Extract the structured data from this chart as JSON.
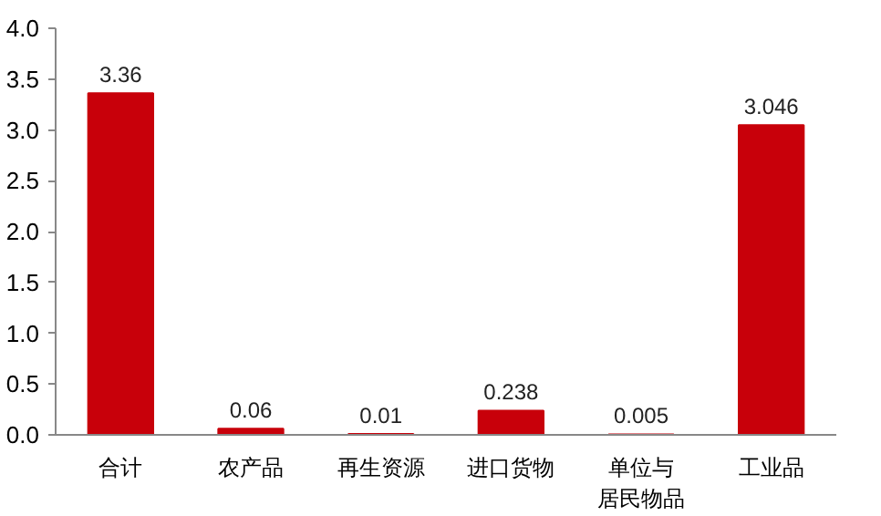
{
  "chart_data": {
    "type": "bar",
    "categories": [
      "合计",
      "农产品",
      "再生资源",
      "进口货物",
      "单位与居民物品",
      "工业品"
    ],
    "values": [
      3.36,
      0.06,
      0.01,
      0.238,
      0.005,
      3.046
    ],
    "value_labels": [
      "3.36",
      "0.06",
      "0.01",
      "0.238",
      "0.005",
      "3.046"
    ],
    "color": "#c8000a",
    "ylim": [
      0,
      4
    ],
    "yticks": [
      {
        "value": 0,
        "label": "0.0"
      },
      {
        "value": 0.5,
        "label": "0.5"
      },
      {
        "value": 1,
        "label": "1.0"
      },
      {
        "value": 1.5,
        "label": "1.5"
      },
      {
        "value": 2,
        "label": "2.0"
      },
      {
        "value": 2.5,
        "label": "2.5"
      },
      {
        "value": 3,
        "label": "3.0"
      },
      {
        "value": 3.5,
        "label": "3.5"
      },
      {
        "value": 4,
        "label": "4.0"
      }
    ],
    "grid": false
  }
}
